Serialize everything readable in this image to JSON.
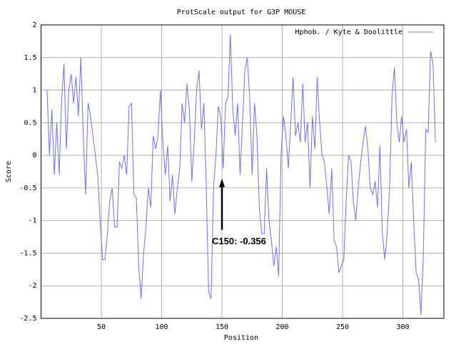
{
  "chart_data": {
    "type": "line",
    "title": "ProtScale output for G3P MOUSE",
    "xlabel": "Position",
    "ylabel": "Score",
    "xlim": [
      0,
      334
    ],
    "ylim": [
      -2.5,
      2
    ],
    "xticks": [
      50,
      100,
      150,
      200,
      250,
      300
    ],
    "yticks": [
      2,
      1.5,
      1,
      0.5,
      0,
      -0.5,
      -1,
      -1.5,
      -2,
      -2.5
    ],
    "grid": true,
    "legend": "upper right",
    "x": [
      5,
      7,
      9,
      11,
      13,
      15,
      17,
      19,
      21,
      23,
      25,
      27,
      29,
      31,
      33,
      35,
      37,
      39,
      41,
      43,
      45,
      47,
      49,
      51,
      53,
      55,
      57,
      59,
      61,
      63,
      65,
      67,
      69,
      71,
      73,
      75,
      77,
      79,
      81,
      83,
      85,
      87,
      89,
      91,
      93,
      95,
      97,
      99,
      101,
      103,
      105,
      107,
      109,
      111,
      113,
      115,
      117,
      119,
      121,
      123,
      125,
      127,
      129,
      131,
      133,
      135,
      137,
      139,
      141,
      143,
      145,
      147,
      149,
      151,
      153,
      155,
      157,
      159,
      161,
      163,
      165,
      167,
      169,
      171,
      173,
      175,
      177,
      179,
      181,
      183,
      185,
      187,
      189,
      191,
      193,
      195,
      197,
      199,
      201,
      203,
      205,
      207,
      209,
      211,
      213,
      215,
      217,
      219,
      221,
      223,
      225,
      227,
      229,
      231,
      233,
      235,
      237,
      239,
      241,
      243,
      245,
      247,
      249,
      251,
      253,
      255,
      257,
      259,
      261,
      263,
      265,
      267,
      269,
      271,
      273,
      275,
      277,
      279,
      281,
      283,
      285,
      287,
      289,
      291,
      293,
      295,
      297,
      299,
      301,
      303,
      305,
      307,
      309,
      311,
      313,
      315,
      317,
      319,
      321,
      323,
      325,
      327
    ],
    "series": [
      {
        "name": "Hphob. / Kyte & Doolittle",
        "color": "#7070f0",
        "values": [
          1.0,
          0.0,
          0.7,
          -0.3,
          0.5,
          -0.3,
          0.8,
          1.4,
          0.1,
          1.0,
          1.25,
          0.8,
          1.2,
          0.6,
          1.5,
          0.3,
          -0.6,
          0.8,
          0.6,
          0.3,
          0.0,
          -0.3,
          -1.0,
          -1.6,
          -1.6,
          -1.2,
          -0.7,
          -0.5,
          -1.1,
          -1.1,
          -0.1,
          -0.2,
          0.0,
          -0.3,
          0.75,
          0.8,
          -0.6,
          -0.65,
          -1.7,
          -2.2,
          -1.5,
          -1.1,
          -0.5,
          -0.8,
          0.3,
          0.1,
          0.3,
          1.0,
          0.2,
          -0.3,
          0.15,
          -0.7,
          -0.3,
          -0.9,
          -0.5,
          -0.2,
          0.8,
          0.5,
          1.1,
          0.7,
          -0.4,
          0.2,
          1.0,
          1.3,
          0.4,
          0.8,
          -0.5,
          -2.1,
          -2.2,
          -0.5,
          0.0,
          0.75,
          0.6,
          -0.2,
          0.8,
          0.9,
          1.85,
          0.7,
          0.3,
          0.8,
          -0.3,
          0.5,
          1.3,
          1.5,
          0.9,
          -0.3,
          0.8,
          0.3,
          -0.8,
          -1.2,
          -1.2,
          -0.2,
          -1.0,
          -1.3,
          -1.7,
          -1.4,
          -1.85,
          0.0,
          0.6,
          0.3,
          -0.2,
          0.5,
          1.2,
          0.3,
          0.5,
          0.2,
          1.1,
          0.2,
          0.5,
          -0.5,
          0.6,
          0.1,
          1.2,
          0.5,
          0.0,
          -0.1,
          -0.5,
          -0.9,
          -0.2,
          -1.3,
          -1.4,
          -1.8,
          -1.7,
          -1.6,
          -0.7,
          0.0,
          -0.1,
          -0.7,
          -1.0,
          -0.5,
          -0.1,
          0.2,
          0.45,
          0.1,
          -0.5,
          -0.6,
          -0.4,
          -0.8,
          0.15,
          -1.2,
          -1.6,
          -1.2,
          -0.5,
          0.9,
          1.35,
          0.5,
          0.2,
          0.6,
          0.2,
          0.4,
          -0.5,
          -0.1,
          -1.0,
          -1.8,
          -1.9,
          -2.45,
          -1.5,
          0.4,
          0.35,
          1.6,
          1.4,
          0.2
        ]
      }
    ],
    "annotations": [
      {
        "x": 150,
        "y": -0.356,
        "text": "C150: -0.356"
      }
    ]
  }
}
